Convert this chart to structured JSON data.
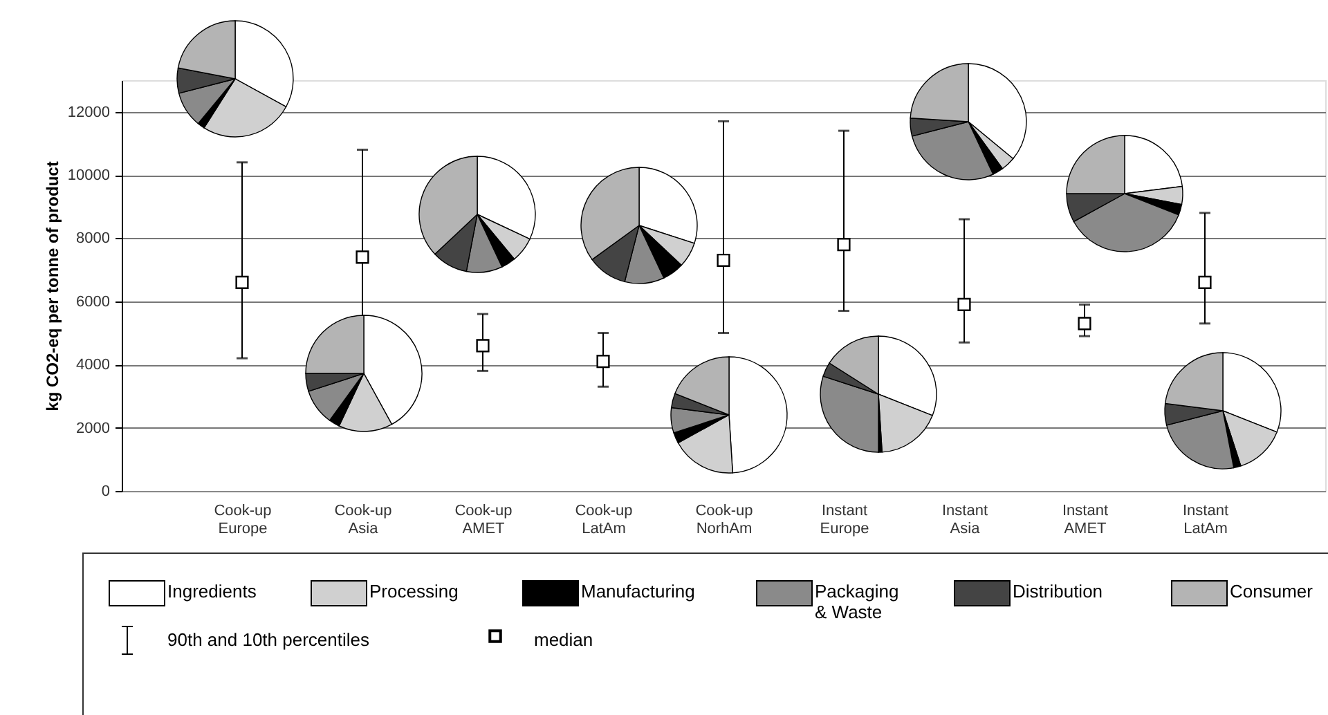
{
  "chart_data": [
    {
      "type": "scatter",
      "ylabel": "kg CO2-eq per tonne of product",
      "categories": [
        "Cook-up Europe",
        "Cook-up Asia",
        "Cook-up AMET",
        "Cook-up LatAm",
        "Cook-up NorhAm",
        "Instant Europe",
        "Instant Asia",
        "Instant AMET",
        "Instant LatAm"
      ],
      "series": [
        {
          "name": "median",
          "color": "#000000",
          "values": [
            6600,
            7400,
            4600,
            4100,
            7300,
            7800,
            5900,
            5300,
            6600
          ],
          "errors": [
            [
              4200,
              10400
            ],
            [
              5300,
              10800
            ],
            [
              3800,
              5600
            ],
            [
              3300,
              5000
            ],
            [
              5000,
              11700
            ],
            [
              5700,
              11400
            ],
            [
              4700,
              8600
            ],
            [
              4900,
              5900
            ],
            [
              5300,
              8800
            ]
          ]
        }
      ],
      "ylim": [
        0,
        13000
      ],
      "yticks": [
        0,
        2000,
        4000,
        6000,
        8000,
        10000,
        12000
      ],
      "grid": "y",
      "marker": "square",
      "legend": "bottom",
      "annotations": [
        "90th and 10th percentiles"
      ]
    },
    {
      "type": "pie",
      "categories": [
        "Ingredients",
        "Processing",
        "Manufacturing",
        "Packaging & Waste",
        "Distribution",
        "Consumer"
      ],
      "values": [
        33,
        26,
        2,
        10,
        7,
        22
      ],
      "legend": "bottom",
      "colors": [
        "#ffffff",
        "#d0d0d0",
        "#000000",
        "#8a8a8a",
        "#444444",
        "#b4b4b4"
      ]
    },
    {
      "type": "pie",
      "values": [
        42,
        15,
        3,
        10,
        5,
        25
      ],
      "colors": [
        "#ffffff",
        "#d0d0d0",
        "#000000",
        "#8a8a8a",
        "#444444",
        "#b4b4b4"
      ]
    },
    {
      "type": "pie",
      "values": [
        32,
        7,
        4,
        10,
        10,
        37
      ],
      "colors": [
        "#ffffff",
        "#d0d0d0",
        "#000000",
        "#8a8a8a",
        "#444444",
        "#b4b4b4"
      ]
    },
    {
      "type": "pie",
      "values": [
        30,
        7,
        6,
        11,
        11,
        35
      ],
      "colors": [
        "#ffffff",
        "#d0d0d0",
        "#000000",
        "#8a8a8a",
        "#444444",
        "#b4b4b4"
      ]
    },
    {
      "type": "pie",
      "values": [
        49,
        18,
        3,
        7,
        4,
        19
      ],
      "colors": [
        "#ffffff",
        "#d0d0d0",
        "#000000",
        "#8a8a8a",
        "#444444",
        "#b4b4b4"
      ]
    },
    {
      "type": "pie",
      "values": [
        31,
        18,
        1,
        30,
        4,
        16
      ],
      "colors": [
        "#ffffff",
        "#d0d0d0",
        "#000000",
        "#8a8a8a",
        "#444444",
        "#b4b4b4"
      ]
    },
    {
      "type": "pie",
      "values": [
        36,
        4,
        3,
        28,
        5,
        24
      ],
      "colors": [
        "#ffffff",
        "#d0d0d0",
        "#000000",
        "#8a8a8a",
        "#444444",
        "#b4b4b4"
      ]
    },
    {
      "type": "pie",
      "values": [
        23,
        5,
        3,
        36,
        8,
        25
      ],
      "colors": [
        "#ffffff",
        "#d0d0d0",
        "#000000",
        "#8a8a8a",
        "#444444",
        "#b4b4b4"
      ]
    },
    {
      "type": "pie",
      "values": [
        31,
        14,
        2,
        24,
        6,
        23
      ],
      "colors": [
        "#ffffff",
        "#d0d0d0",
        "#000000",
        "#8a8a8a",
        "#444444",
        "#b4b4b4"
      ]
    }
  ]
}
